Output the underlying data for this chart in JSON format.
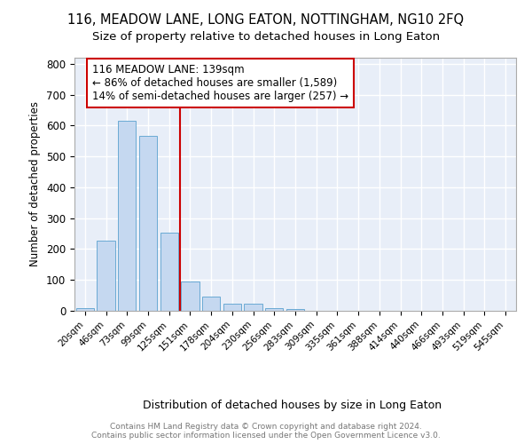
{
  "title1": "116, MEADOW LANE, LONG EATON, NOTTINGHAM, NG10 2FQ",
  "title2": "Size of property relative to detached houses in Long Eaton",
  "xlabel": "Distribution of detached houses by size in Long Eaton",
  "ylabel": "Number of detached properties",
  "bar_labels": [
    "20sqm",
    "46sqm",
    "73sqm",
    "99sqm",
    "125sqm",
    "151sqm",
    "178sqm",
    "204sqm",
    "230sqm",
    "256sqm",
    "283sqm",
    "309sqm",
    "335sqm",
    "361sqm",
    "388sqm",
    "414sqm",
    "440sqm",
    "466sqm",
    "493sqm",
    "519sqm",
    "545sqm"
  ],
  "bar_values": [
    10,
    228,
    615,
    567,
    253,
    95,
    47,
    22,
    22,
    8,
    5,
    0,
    0,
    0,
    0,
    0,
    0,
    0,
    0,
    0,
    0
  ],
  "bar_color": "#c5d8f0",
  "bar_edgecolor": "#6aaad4",
  "vline_x": 4.5,
  "vline_color": "#cc0000",
  "annotation_text": "116 MEADOW LANE: 139sqm\n← 86% of detached houses are smaller (1,589)\n14% of semi-detached houses are larger (257) →",
  "annotation_box_color": "#ffffff",
  "annotation_box_edgecolor": "#cc0000",
  "ylim": [
    0,
    820
  ],
  "yticks": [
    0,
    100,
    200,
    300,
    400,
    500,
    600,
    700,
    800
  ],
  "background_color": "#e8eef8",
  "footer_text": "Contains HM Land Registry data © Crown copyright and database right 2024.\nContains public sector information licensed under the Open Government Licence v3.0.",
  "grid_color": "#ffffff",
  "title1_fontsize": 10.5,
  "title2_fontsize": 9.5
}
